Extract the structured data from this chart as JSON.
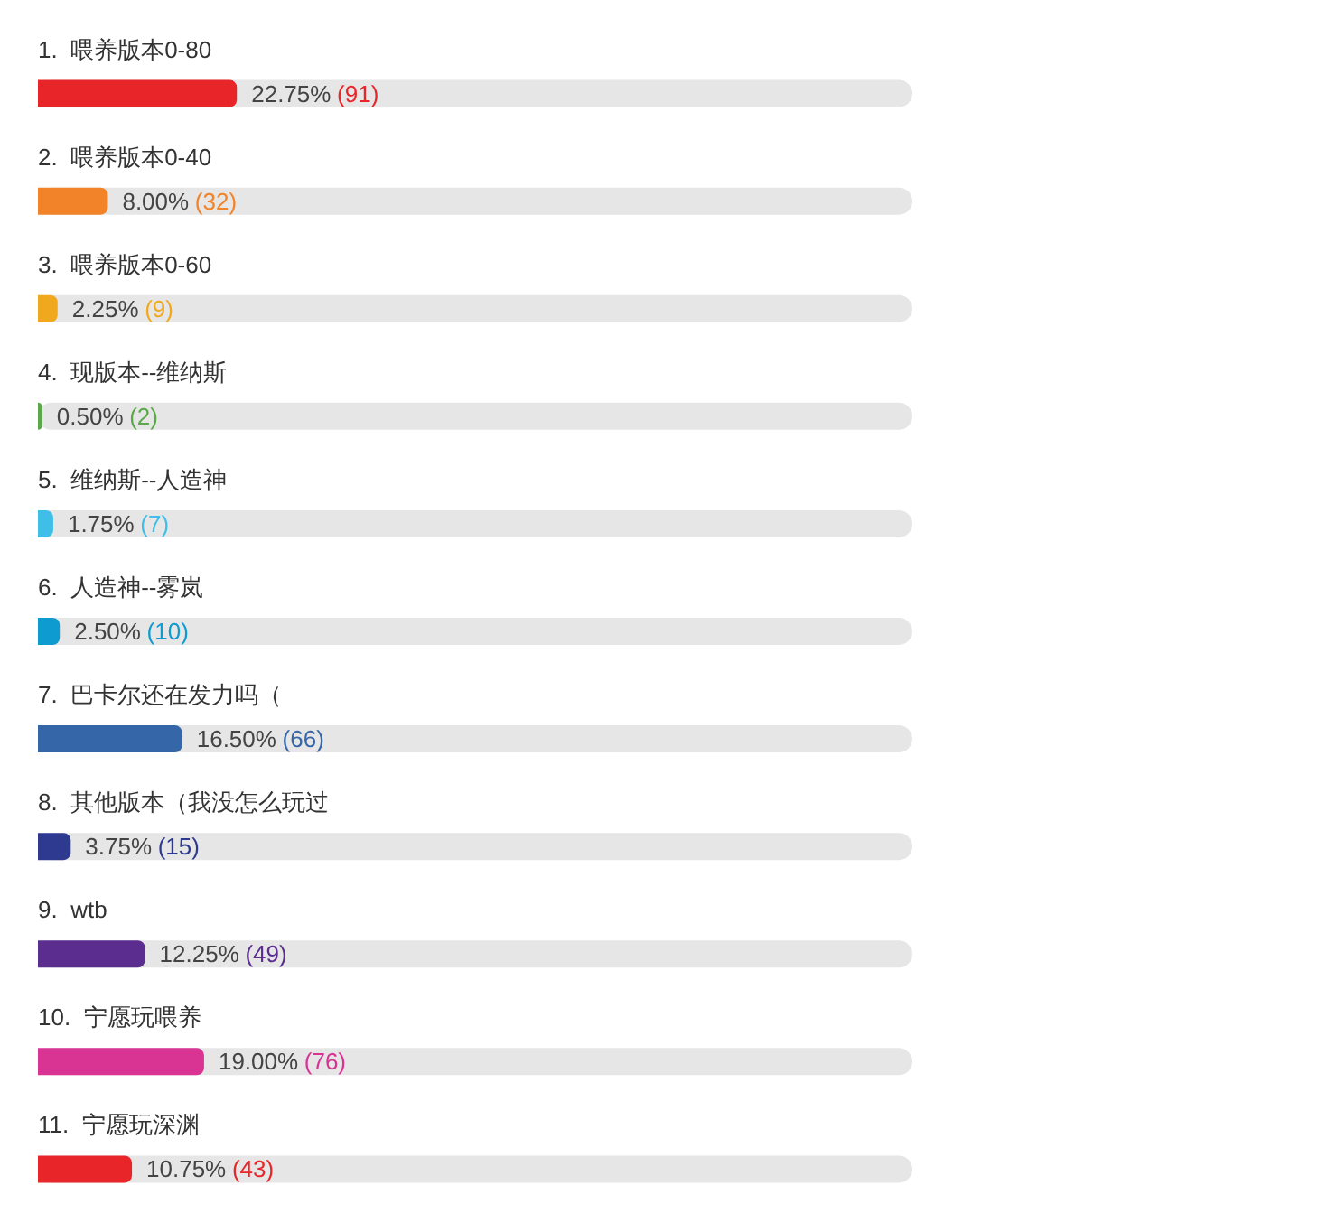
{
  "chart_data": {
    "type": "bar",
    "orientation": "horizontal",
    "categories": [
      "1.  喂养版本0-80",
      "2.  喂养版本0-40",
      "3.  喂养版本0-60",
      "4.  现版本--维纳斯",
      "5.  维纳斯--人造神",
      "6.  人造神--雾岚",
      "7.  巴卡尔还在发力吗（",
      "8.  其他版本（我没怎么玩过",
      "9.  wtb",
      "10.  宁愿玩喂养",
      "11.  宁愿玩深渊"
    ],
    "values": [
      22.75,
      8.0,
      2.25,
      0.5,
      1.75,
      2.5,
      16.5,
      3.75,
      12.25,
      19.0,
      10.75
    ],
    "colors": [
      "#e8262a",
      "#f28329",
      "#f0a81e",
      "#5aa84a",
      "#3fbfe8",
      "#0e9bcf",
      "#3566a8",
      "#2e3a8f",
      "#5a2d8e",
      "#d93494",
      "#e8262a"
    ],
    "value_labels": [
      "22.75% (91)",
      "8.00% (32)",
      "2.25% (9)",
      "0.50% (2)",
      "1.75% (7)",
      "2.50% (10)",
      "16.50% (66)",
      "3.75% (15)",
      "12.25% (49)",
      "19.00% (76)",
      "10.75% (43)"
    ],
    "xlim": [
      0,
      100
    ],
    "tick_labels": "y",
    "grid": false
  }
}
